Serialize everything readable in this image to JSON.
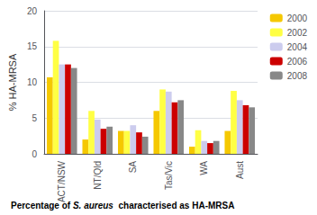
{
  "chart_data": {
    "type": "bar",
    "categories": [
      "ACT/NSW",
      "NT/Qld",
      "SA",
      "Tas/Vic",
      "WA",
      "Aust"
    ],
    "series": [
      {
        "name": "2000",
        "color": "#F5C800",
        "values": [
          10.7,
          2.0,
          3.2,
          6.0,
          1.0,
          3.2
        ]
      },
      {
        "name": "2002",
        "color": "#FFFF44",
        "values": [
          15.8,
          6.0,
          3.2,
          9.0,
          3.3,
          8.8
        ]
      },
      {
        "name": "2004",
        "color": "#CCCCEE",
        "values": [
          12.5,
          4.8,
          4.0,
          8.7,
          1.8,
          7.5
        ]
      },
      {
        "name": "2006",
        "color": "#CC0000",
        "values": [
          12.5,
          3.5,
          3.0,
          7.2,
          1.5,
          6.8
        ]
      },
      {
        "name": "2008",
        "color": "#888888",
        "values": [
          12.0,
          3.8,
          2.4,
          7.5,
          1.8,
          6.5
        ]
      }
    ],
    "ylabel": "% HA-MRSA",
    "ylim": [
      0,
      20
    ],
    "yticks": [
      0,
      5,
      10,
      15,
      20
    ],
    "grid": true,
    "legend": "right",
    "annotations": [
      "Percentage of ",
      "S. aureus",
      "  characterised as HA-MRSA"
    ]
  }
}
